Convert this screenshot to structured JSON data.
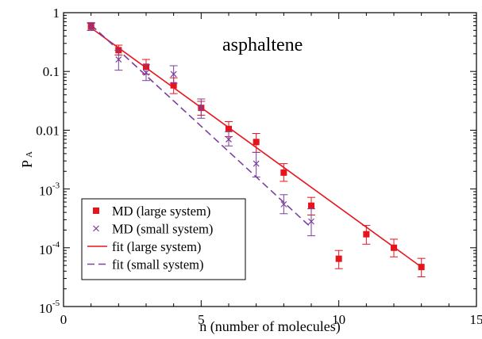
{
  "chart_data": {
    "type": "scatter",
    "annotation": "asphaltene",
    "xlabel": "n (number of molecules)",
    "ylabel": {
      "main": "P",
      "sub": "A"
    },
    "xlim": [
      0,
      15
    ],
    "ylim": [
      1e-05,
      1
    ],
    "yscale": "log",
    "grid": false,
    "legend_position": "bottom-left",
    "x_ticks": [
      "0",
      "5",
      "10",
      "15"
    ],
    "y_ticks": [
      {
        "base": "10",
        "exp": "-5",
        "value": 1e-05
      },
      {
        "base": "10",
        "exp": "-4",
        "value": 0.0001
      },
      {
        "base": "10",
        "exp": "-3",
        "value": 0.001
      },
      {
        "text": "0.01",
        "value": 0.01
      },
      {
        "text": "0.1",
        "value": 0.1
      },
      {
        "text": "1",
        "value": 1
      }
    ],
    "series": [
      {
        "name": "MD (large system)",
        "kind": "points",
        "marker": "square",
        "color": "#e8141c",
        "points": [
          {
            "x": 1,
            "y": 0.58,
            "lo": 0.5,
            "hi": 0.66
          },
          {
            "x": 2,
            "y": 0.23,
            "lo": 0.19,
            "hi": 0.28
          },
          {
            "x": 3,
            "y": 0.12,
            "lo": 0.09,
            "hi": 0.16
          },
          {
            "x": 4,
            "y": 0.058,
            "lo": 0.042,
            "hi": 0.078
          },
          {
            "x": 5,
            "y": 0.024,
            "lo": 0.018,
            "hi": 0.031
          },
          {
            "x": 6,
            "y": 0.0105,
            "lo": 0.0078,
            "hi": 0.014
          },
          {
            "x": 7,
            "y": 0.0063,
            "lo": 0.0042,
            "hi": 0.0088
          },
          {
            "x": 8,
            "y": 0.0019,
            "lo": 0.00135,
            "hi": 0.0027
          },
          {
            "x": 9,
            "y": 0.00052,
            "lo": 0.00036,
            "hi": 0.00072
          },
          {
            "x": 10,
            "y": 6.5e-05,
            "lo": 4.4e-05,
            "hi": 9e-05
          },
          {
            "x": 11,
            "y": 0.00017,
            "lo": 0.000115,
            "hi": 0.00024
          },
          {
            "x": 12,
            "y": 0.0001,
            "lo": 7e-05,
            "hi": 0.00014
          },
          {
            "x": 13,
            "y": 4.7e-05,
            "lo": 3.2e-05,
            "hi": 6.6e-05
          }
        ]
      },
      {
        "name": "MD (small system)",
        "kind": "points",
        "marker": "x",
        "color": "#7b3f9e",
        "points": [
          {
            "x": 1,
            "y": 0.58,
            "lo": 0.5,
            "hi": 0.68
          },
          {
            "x": 2,
            "y": 0.16,
            "lo": 0.105,
            "hi": 0.23
          },
          {
            "x": 3,
            "y": 0.095,
            "lo": 0.07,
            "hi": 0.13
          },
          {
            "x": 4,
            "y": 0.09,
            "lo": 0.063,
            "hi": 0.125
          },
          {
            "x": 5,
            "y": 0.024,
            "lo": 0.016,
            "hi": 0.034
          },
          {
            "x": 6,
            "y": 0.007,
            "lo": 0.0054,
            "hi": 0.0095
          },
          {
            "x": 7,
            "y": 0.0027,
            "lo": 0.0016,
            "hi": 0.0042
          },
          {
            "x": 8,
            "y": 0.00055,
            "lo": 0.00038,
            "hi": 0.0008
          },
          {
            "x": 9,
            "y": 0.00028,
            "lo": 0.00016,
            "hi": 0.00046
          }
        ]
      },
      {
        "name": "fit (large system)",
        "kind": "line",
        "dash": "solid",
        "color": "#e8141c",
        "x": [
          1,
          13
        ],
        "y": [
          0.55,
          4.7e-05
        ]
      },
      {
        "name": "fit (small system)",
        "kind": "line",
        "dash": "dashed",
        "color": "#7b3f9e",
        "x": [
          1,
          9
        ],
        "y": [
          0.62,
          0.00022
        ]
      }
    ]
  }
}
